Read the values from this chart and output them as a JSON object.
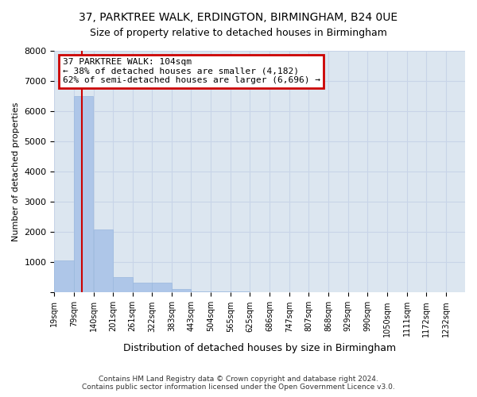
{
  "title": "37, PARKTREE WALK, ERDINGTON, BIRMINGHAM, B24 0UE",
  "subtitle": "Size of property relative to detached houses in Birmingham",
  "xlabel": "Distribution of detached houses by size in Birmingham",
  "ylabel": "Number of detached properties",
  "footnote1": "Contains HM Land Registry data © Crown copyright and database right 2024.",
  "footnote2": "Contains public sector information licensed under the Open Government Licence v3.0.",
  "annotation_title": "37 PARKTREE WALK: 104sqm",
  "annotation_line2": "← 38% of detached houses are smaller (4,182)",
  "annotation_line3": "62% of semi-detached houses are larger (6,696) →",
  "property_size": 104,
  "bin_labels": [
    "19sqm",
    "79sqm",
    "140sqm",
    "201sqm",
    "261sqm",
    "322sqm",
    "383sqm",
    "443sqm",
    "504sqm",
    "565sqm",
    "625sqm",
    "686sqm",
    "747sqm",
    "807sqm",
    "868sqm",
    "929sqm",
    "990sqm",
    "1050sqm",
    "1111sqm",
    "1172sqm",
    "1232sqm"
  ],
  "bin_edges": [
    19,
    79,
    140,
    201,
    261,
    322,
    383,
    443,
    504,
    565,
    625,
    686,
    747,
    807,
    868,
    929,
    990,
    1050,
    1111,
    1172,
    1232
  ],
  "bar_heights": [
    1050,
    6500,
    2100,
    500,
    330,
    330,
    120,
    50,
    35,
    25,
    18,
    12,
    10,
    8,
    6,
    5,
    4,
    3,
    3,
    2
  ],
  "bar_color": "#aec6e8",
  "bar_edge_color": "#9ab8de",
  "grid_color": "#c8d4e8",
  "bg_color": "#dce6f0",
  "annotation_box_color": "#cc0000",
  "vline_color": "#cc0000",
  "ylim": [
    0,
    8000
  ],
  "title_fontsize": 10,
  "subtitle_fontsize": 9
}
